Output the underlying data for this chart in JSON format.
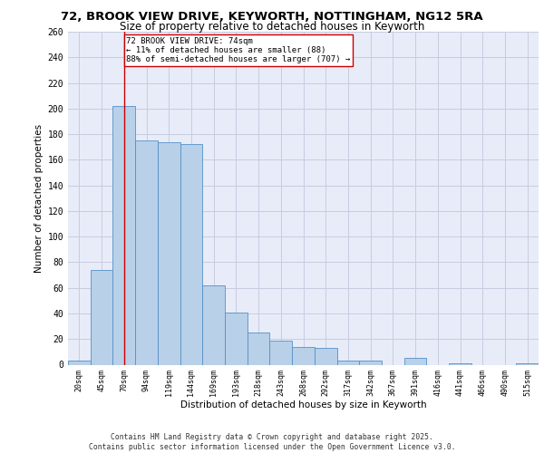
{
  "title_line1": "72, BROOK VIEW DRIVE, KEYWORTH, NOTTINGHAM, NG12 5RA",
  "title_line2": "Size of property relative to detached houses in Keyworth",
  "xlabel": "Distribution of detached houses by size in Keyworth",
  "ylabel": "Number of detached properties",
  "categories": [
    "20sqm",
    "45sqm",
    "70sqm",
    "94sqm",
    "119sqm",
    "144sqm",
    "169sqm",
    "193sqm",
    "218sqm",
    "243sqm",
    "268sqm",
    "292sqm",
    "317sqm",
    "342sqm",
    "367sqm",
    "391sqm",
    "416sqm",
    "441sqm",
    "466sqm",
    "490sqm",
    "515sqm"
  ],
  "values": [
    3,
    74,
    202,
    175,
    174,
    172,
    62,
    41,
    25,
    19,
    14,
    13,
    3,
    3,
    0,
    5,
    0,
    1,
    0,
    0,
    1
  ],
  "bar_color": "#b8d0e8",
  "bar_edge_color": "#5590c8",
  "grid_color": "#c8cce0",
  "background_color": "#e8ecf8",
  "vline_x": 2,
  "vline_color": "#cc0000",
  "annotation_text": "72 BROOK VIEW DRIVE: 74sqm\n← 11% of detached houses are smaller (88)\n88% of semi-detached houses are larger (707) →",
  "annotation_box_color": "#ffffff",
  "annotation_box_edge": "#cc0000",
  "footer_text": "Contains HM Land Registry data © Crown copyright and database right 2025.\nContains public sector information licensed under the Open Government Licence v3.0.",
  "ylim": [
    0,
    260
  ],
  "yticks": [
    0,
    20,
    40,
    60,
    80,
    100,
    120,
    140,
    160,
    180,
    200,
    220,
    240,
    260
  ]
}
